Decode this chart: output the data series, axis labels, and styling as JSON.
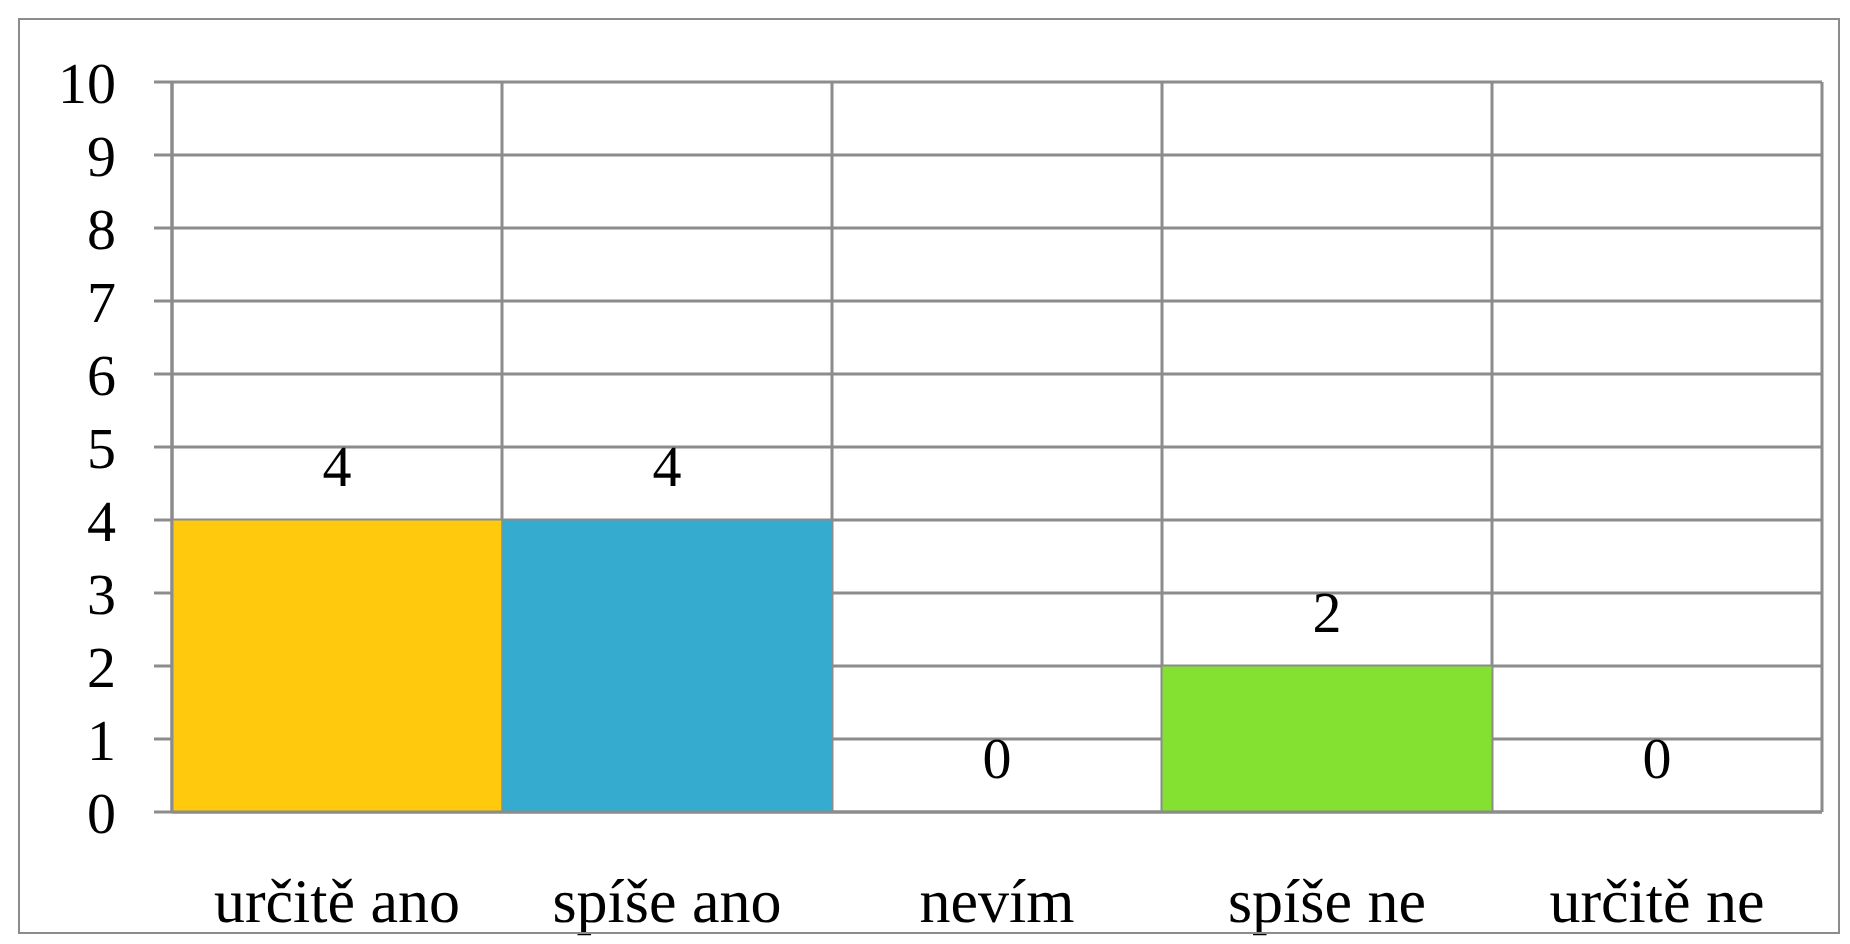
{
  "chart_data": {
    "type": "bar",
    "categories": [
      "určitě ano",
      "spíše ano",
      "nevím",
      "spíše ne",
      "určitě ne"
    ],
    "values": [
      4,
      4,
      0,
      2,
      0
    ],
    "colors": [
      "#ffc90e",
      "#35abcf",
      null,
      "#84e031",
      null
    ],
    "ylim": [
      0,
      10
    ],
    "yticks": [
      0,
      1,
      2,
      3,
      4,
      5,
      6,
      7,
      8,
      9,
      10
    ],
    "grid": true,
    "data_labels": true
  }
}
